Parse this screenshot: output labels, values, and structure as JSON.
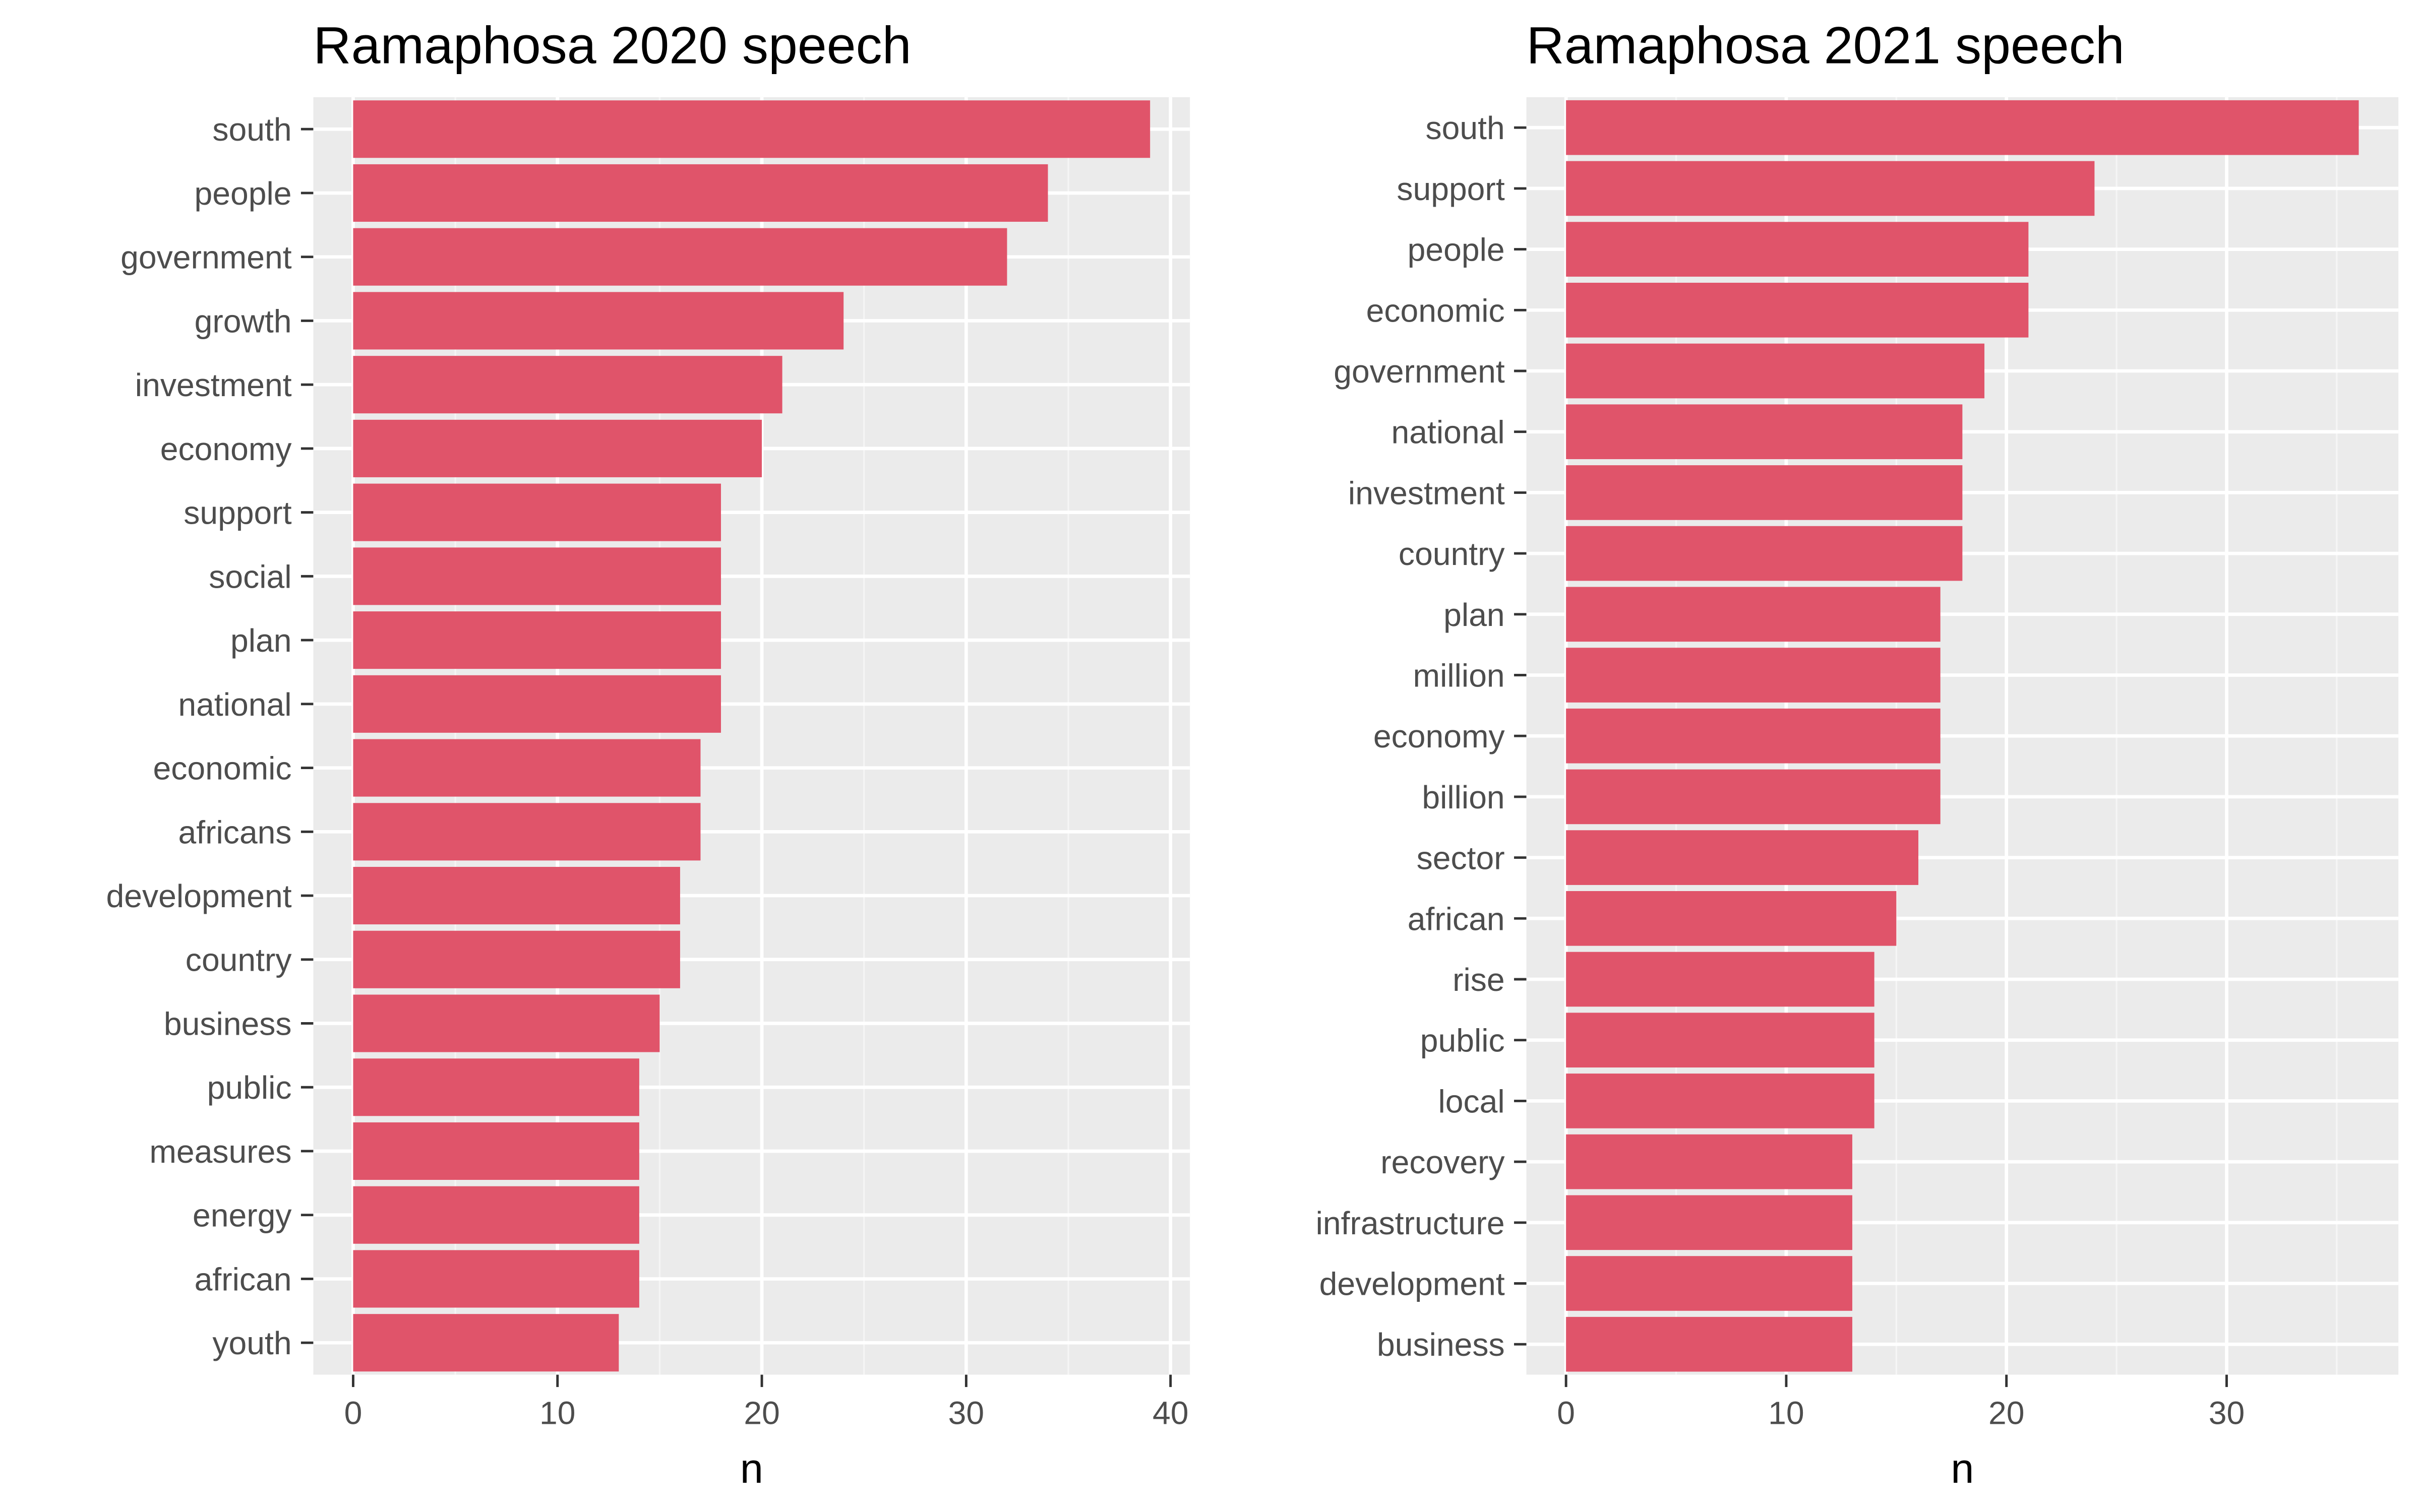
{
  "colors": {
    "bar": "#E0546A",
    "panel": "#EBEBEB",
    "grid_major": "#FFFFFF",
    "grid_minor": "#F5F5F5",
    "tick_text": "#4D4D4D",
    "tick_mark": "#333333"
  },
  "chart_data": [
    {
      "type": "bar",
      "orientation": "horizontal",
      "title": "Ramaphosa 2020 speech",
      "xlabel": "n",
      "ylabel": "",
      "xlim": [
        -1.95,
        40.95
      ],
      "xticks": [
        0,
        10,
        20,
        30,
        40
      ],
      "grid": true,
      "categories": [
        "south",
        "people",
        "government",
        "growth",
        "investment",
        "economy",
        "support",
        "social",
        "plan",
        "national",
        "economic",
        "africans",
        "development",
        "country",
        "business",
        "public",
        "measures",
        "energy",
        "african",
        "youth"
      ],
      "values": [
        39,
        34,
        32,
        24,
        21,
        20,
        18,
        18,
        18,
        18,
        17,
        17,
        16,
        16,
        15,
        14,
        14,
        14,
        14,
        13
      ]
    },
    {
      "type": "bar",
      "orientation": "horizontal",
      "title": "Ramaphosa 2021 speech",
      "xlabel": "n",
      "ylabel": "",
      "xlim": [
        -1.8,
        37.8
      ],
      "xticks": [
        0,
        10,
        20,
        30
      ],
      "grid": true,
      "categories": [
        "south",
        "support",
        "people",
        "economic",
        "government",
        "national",
        "investment",
        "country",
        "plan",
        "million",
        "economy",
        "billion",
        "sector",
        "african",
        "rise",
        "public",
        "local",
        "recovery",
        "infrastructure",
        "development",
        "business"
      ],
      "values": [
        36,
        24,
        21,
        21,
        19,
        18,
        18,
        18,
        17,
        17,
        17,
        17,
        16,
        15,
        14,
        14,
        14,
        13,
        13,
        13,
        13
      ]
    }
  ]
}
